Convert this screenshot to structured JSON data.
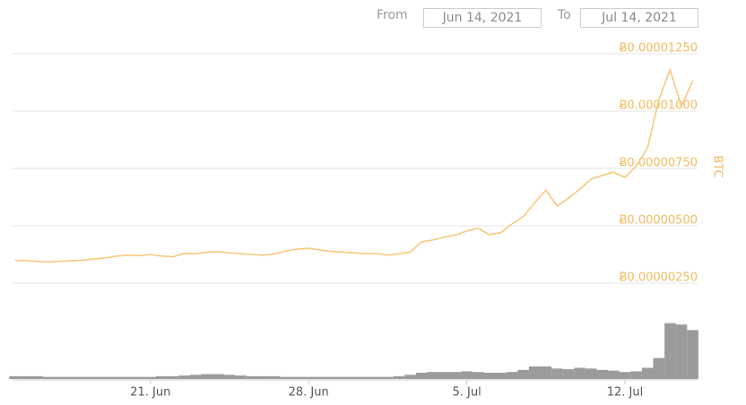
{
  "controls": {
    "from_label": "From",
    "from_value": "Jun 14, 2021",
    "to_label": "To",
    "to_value": "Jul 14, 2021"
  },
  "chart_data": [
    {
      "type": "line",
      "color": "#f7c97e",
      "label_color": "#f2bb5f",
      "y_label": "BTC",
      "grid": true,
      "categories": [
        null,
        null,
        null,
        null,
        null,
        null,
        null,
        null,
        null,
        null,
        null,
        null,
        "21. Jun",
        null,
        null,
        null,
        null,
        null,
        null,
        null,
        null,
        null,
        null,
        null,
        null,
        null,
        "28. Jun",
        null,
        null,
        null,
        null,
        null,
        null,
        null,
        null,
        null,
        null,
        null,
        null,
        null,
        "5. Jul",
        null,
        null,
        null,
        null,
        null,
        null,
        null,
        null,
        null,
        null,
        null,
        null,
        null,
        "12. Jul",
        null,
        null,
        null,
        null,
        null,
        null
      ],
      "values": [
        3.5e-06,
        3.48e-06,
        3.45e-06,
        3.42e-06,
        3.45e-06,
        3.48e-06,
        3.5e-06,
        3.55e-06,
        3.6e-06,
        3.68e-06,
        3.72e-06,
        3.7e-06,
        3.75e-06,
        3.68e-06,
        3.65e-06,
        3.8e-06,
        3.78e-06,
        3.85e-06,
        3.87e-06,
        3.82e-06,
        3.78e-06,
        3.75e-06,
        3.72e-06,
        3.78e-06,
        3.9e-06,
        3.98e-06,
        4.02e-06,
        3.95e-06,
        3.88e-06,
        3.85e-06,
        3.82e-06,
        3.78e-06,
        3.79e-06,
        3.72e-06,
        3.78e-06,
        3.85e-06,
        4.3e-06,
        4.38e-06,
        4.5e-06,
        4.6e-06,
        4.77e-06,
        4.9e-06,
        4.61e-06,
        4.7e-06,
        5.08e-06,
        5.4e-06,
        6e-06,
        6.56e-06,
        5.86e-06,
        6.2e-06,
        6.6e-06,
        7.03e-06,
        7.2e-06,
        7.34e-06,
        7.11e-06,
        7.6e-06,
        8.4e-06,
        1.05e-05,
        1.18e-05,
        1.02e-05,
        1.133e-05
      ],
      "ylim": [
        2.5e-06,
        1.25e-05
      ],
      "yticks": [
        {
          "value": 1.25e-05,
          "label": "Ƀ0.00001250"
        },
        {
          "value": 1e-05,
          "label": "Ƀ0.00001000"
        },
        {
          "value": 7.5e-06,
          "label": "Ƀ0.00000750"
        },
        {
          "value": 5e-06,
          "label": "Ƀ0.00000500"
        },
        {
          "value": 2.5e-06,
          "label": "Ƀ0.00000250"
        }
      ]
    },
    {
      "type": "bar",
      "color": "#8a8a8a",
      "ylim": [
        0,
        100
      ],
      "values": [
        4,
        4,
        4,
        3,
        3,
        3,
        3,
        3,
        3,
        3,
        3,
        3,
        3,
        4,
        4,
        5,
        6,
        7,
        7,
        6,
        5,
        4,
        4,
        4,
        3,
        3,
        3,
        3,
        3,
        3,
        3,
        3,
        3,
        3,
        4,
        6,
        9,
        10,
        10,
        10,
        11,
        10,
        9,
        9,
        10,
        13,
        18,
        18,
        15,
        14,
        16,
        15,
        13,
        12,
        10,
        11,
        16,
        30,
        80,
        78,
        70
      ]
    }
  ]
}
